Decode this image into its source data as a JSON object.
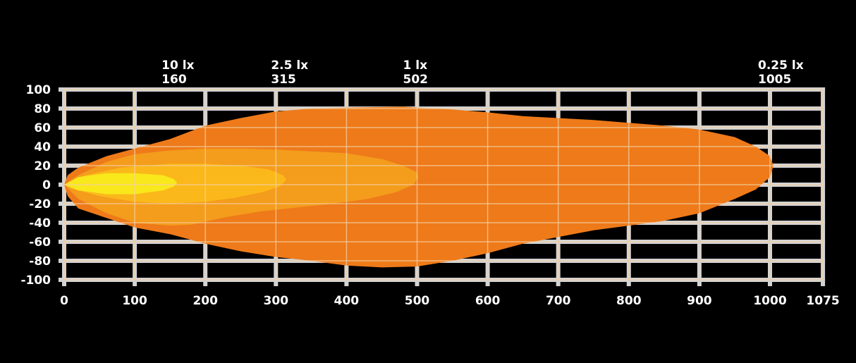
{
  "chart_data": {
    "type": "area",
    "title": "",
    "xlabel": "",
    "ylabel": "",
    "xlim": [
      0,
      1075
    ],
    "ylim": [
      -100,
      100
    ],
    "grid": true,
    "x_ticks": [
      0,
      100,
      200,
      300,
      400,
      500,
      600,
      700,
      800,
      900,
      1000,
      1075
    ],
    "y_ticks": [
      100,
      80,
      60,
      40,
      20,
      0,
      -20,
      -40,
      -60,
      -80,
      -100
    ],
    "annotations": [
      {
        "lux": "10 lx",
        "distance": "160",
        "x": 160
      },
      {
        "lux": "2.5 lx",
        "distance": "315",
        "x": 315
      },
      {
        "lux": "1 lx",
        "distance": "502",
        "x": 502
      },
      {
        "lux": "0.25 lx",
        "distance": "1005",
        "x": 1005
      }
    ],
    "series": [
      {
        "name": "0.25 lx",
        "color": "#ee7a1a",
        "reach": 1005,
        "outline": [
          [
            0,
            0
          ],
          [
            5,
            10
          ],
          [
            20,
            18
          ],
          [
            60,
            30
          ],
          [
            100,
            38
          ],
          [
            150,
            48
          ],
          [
            200,
            62
          ],
          [
            250,
            70
          ],
          [
            300,
            77
          ],
          [
            350,
            80
          ],
          [
            400,
            81
          ],
          [
            480,
            82
          ],
          [
            500,
            81
          ],
          [
            550,
            79
          ],
          [
            600,
            76
          ],
          [
            650,
            72
          ],
          [
            700,
            70
          ],
          [
            750,
            68
          ],
          [
            800,
            65
          ],
          [
            850,
            62
          ],
          [
            900,
            58
          ],
          [
            950,
            50
          ],
          [
            980,
            40
          ],
          [
            1000,
            30
          ],
          [
            1005,
            20
          ],
          [
            1000,
            8
          ],
          [
            980,
            -5
          ],
          [
            950,
            -15
          ],
          [
            900,
            -30
          ],
          [
            850,
            -38
          ],
          [
            800,
            -43
          ],
          [
            750,
            -48
          ],
          [
            700,
            -55
          ],
          [
            650,
            -62
          ],
          [
            600,
            -72
          ],
          [
            550,
            -80
          ],
          [
            500,
            -86
          ],
          [
            450,
            -87
          ],
          [
            400,
            -85
          ],
          [
            350,
            -80
          ],
          [
            300,
            -76
          ],
          [
            250,
            -70
          ],
          [
            200,
            -62
          ],
          [
            150,
            -52
          ],
          [
            100,
            -45
          ],
          [
            60,
            -35
          ],
          [
            20,
            -25
          ],
          [
            5,
            -12
          ]
        ]
      },
      {
        "name": "1 lx",
        "color": "#f49c1c",
        "reach": 502,
        "outline": [
          [
            0,
            0
          ],
          [
            20,
            10
          ],
          [
            60,
            24
          ],
          [
            100,
            32
          ],
          [
            150,
            36
          ],
          [
            200,
            38
          ],
          [
            250,
            38
          ],
          [
            300,
            37
          ],
          [
            350,
            35
          ],
          [
            400,
            33
          ],
          [
            450,
            27
          ],
          [
            480,
            20
          ],
          [
            500,
            13
          ],
          [
            502,
            8
          ],
          [
            495,
            0
          ],
          [
            470,
            -8
          ],
          [
            430,
            -15
          ],
          [
            380,
            -20
          ],
          [
            330,
            -24
          ],
          [
            280,
            -28
          ],
          [
            230,
            -34
          ],
          [
            180,
            -42
          ],
          [
            150,
            -43
          ],
          [
            100,
            -40
          ],
          [
            60,
            -30
          ],
          [
            20,
            -15
          ]
        ]
      },
      {
        "name": "2.5 lx",
        "color": "#fbb81a",
        "reach": 315,
        "outline": [
          [
            0,
            0
          ],
          [
            30,
            10
          ],
          [
            80,
            18
          ],
          [
            150,
            22
          ],
          [
            200,
            22
          ],
          [
            250,
            20
          ],
          [
            290,
            16
          ],
          [
            310,
            10
          ],
          [
            315,
            5
          ],
          [
            305,
            -2
          ],
          [
            280,
            -8
          ],
          [
            240,
            -14
          ],
          [
            200,
            -18
          ],
          [
            150,
            -20
          ],
          [
            100,
            -18
          ],
          [
            50,
            -12
          ],
          [
            10,
            -4
          ]
        ]
      },
      {
        "name": "10 lx",
        "color": "#f9e81c",
        "reach": 160,
        "outline": [
          [
            0,
            0
          ],
          [
            20,
            8
          ],
          [
            60,
            12
          ],
          [
            100,
            12
          ],
          [
            140,
            10
          ],
          [
            155,
            6
          ],
          [
            160,
            2
          ],
          [
            155,
            -2
          ],
          [
            140,
            -6
          ],
          [
            100,
            -10
          ],
          [
            60,
            -10
          ],
          [
            20,
            -6
          ]
        ]
      }
    ]
  },
  "colors": {
    "background": "#000000",
    "grid": "#d3d3d3",
    "text": "#ffffff"
  }
}
